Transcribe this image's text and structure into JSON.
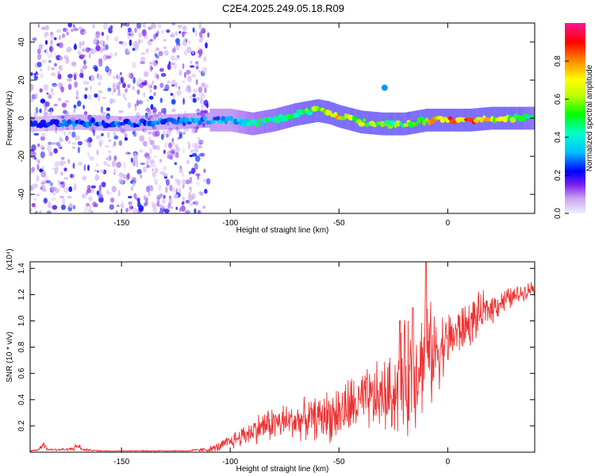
{
  "title": "C2E4.2025.249.05.18.R09",
  "chart_data": [
    {
      "type": "heatmap",
      "title": "C2E4.2025.249.05.18.R09",
      "xlabel": "Height of straight line (km)",
      "ylabel": "Frequency (Hz)",
      "xlim": [
        -192,
        40
      ],
      "ylim": [
        -50,
        50
      ],
      "x_ticks": [
        -150,
        -100,
        -50,
        0
      ],
      "y_ticks": [
        40,
        20,
        0,
        -20,
        -40
      ],
      "colorbar": {
        "label": "Normalized spectral amplitude",
        "range": [
          0,
          1
        ],
        "ticks": [
          0.0,
          0.2,
          0.4,
          0.6,
          0.8
        ],
        "colormap": [
          "#e6e6fa",
          "#c8a2f0",
          "#8a2be2",
          "#5a00e6",
          "#0000ff",
          "#00bfff",
          "#00ffcc",
          "#00ff00",
          "#bfff00",
          "#ffff00",
          "#ff8c00",
          "#ff0000",
          "#ff1493"
        ]
      },
      "ridge": {
        "x": [
          -190,
          -170,
          -150,
          -130,
          -110,
          -100,
          -90,
          -80,
          -70,
          -60,
          -55,
          -50,
          -40,
          -30,
          -20,
          -15,
          -10,
          0,
          10,
          20,
          30,
          40
        ],
        "freq": [
          -3,
          -2,
          -3,
          -2,
          -1,
          -1,
          -3,
          -1,
          2,
          4,
          3,
          1,
          -2,
          -3,
          -3,
          -2,
          -1,
          -1,
          -1,
          0,
          0,
          0
        ],
        "amplitude": [
          0.25,
          0.3,
          0.3,
          0.3,
          0.35,
          0.35,
          0.45,
          0.5,
          0.55,
          0.6,
          0.75,
          0.8,
          0.65,
          0.6,
          0.6,
          0.65,
          0.75,
          0.85,
          0.9,
          0.75,
          0.6,
          0.5
        ]
      },
      "noise_region_x": [
        -192,
        -110
      ],
      "isolated_spot": {
        "x": -29,
        "freq": 16,
        "amplitude": 0.3
      }
    },
    {
      "type": "line",
      "xlabel": "Height of straight line (km)",
      "ylabel": "SNR (10 * v/v)",
      "y_multiplier": "(x10⁴)",
      "xlim": [
        -192,
        40
      ],
      "ylim": [
        0,
        1.45
      ],
      "x_ticks": [
        -150,
        -100,
        -50,
        0
      ],
      "y_ticks": [
        0.2,
        0.4,
        0.6,
        0.8,
        1.0,
        1.2,
        1.4
      ],
      "color": "#ee3333",
      "envelope": {
        "x": [
          -192,
          -188,
          -186,
          -184,
          -175,
          -172,
          -170,
          -168,
          -160,
          -140,
          -120,
          -110,
          -105,
          -100,
          -95,
          -90,
          -85,
          -80,
          -70,
          -60,
          -55,
          -50,
          -45,
          -40,
          -35,
          -30,
          -25,
          -22,
          -20,
          -18,
          -15,
          -12,
          -10,
          -8,
          -5,
          0,
          5,
          10,
          15,
          20,
          25,
          30,
          35,
          40
        ],
        "mean": [
          0.01,
          0.02,
          0.07,
          0.02,
          0.02,
          0.03,
          0.05,
          0.02,
          0.01,
          0.01,
          0.01,
          0.02,
          0.04,
          0.08,
          0.12,
          0.16,
          0.2,
          0.22,
          0.24,
          0.26,
          0.28,
          0.3,
          0.34,
          0.38,
          0.4,
          0.42,
          0.45,
          0.5,
          0.55,
          0.6,
          0.65,
          0.7,
          0.75,
          0.72,
          0.78,
          0.85,
          0.92,
          0.98,
          1.05,
          1.1,
          1.15,
          1.18,
          1.22,
          1.26
        ],
        "spread": [
          0.005,
          0.01,
          0.03,
          0.01,
          0.01,
          0.02,
          0.03,
          0.01,
          0.005,
          0.005,
          0.005,
          0.02,
          0.04,
          0.06,
          0.08,
          0.1,
          0.12,
          0.14,
          0.14,
          0.16,
          0.2,
          0.22,
          0.24,
          0.22,
          0.26,
          0.28,
          0.3,
          0.38,
          0.42,
          0.5,
          0.45,
          0.4,
          0.55,
          0.4,
          0.3,
          0.22,
          0.2,
          0.18,
          0.16,
          0.12,
          0.1,
          0.08,
          0.06,
          0.06
        ]
      },
      "peaks": [
        {
          "x": -10,
          "y": 1.46
        },
        {
          "x": -16,
          "y": 1.1
        },
        {
          "x": -22,
          "y": 1.0
        }
      ]
    }
  ]
}
